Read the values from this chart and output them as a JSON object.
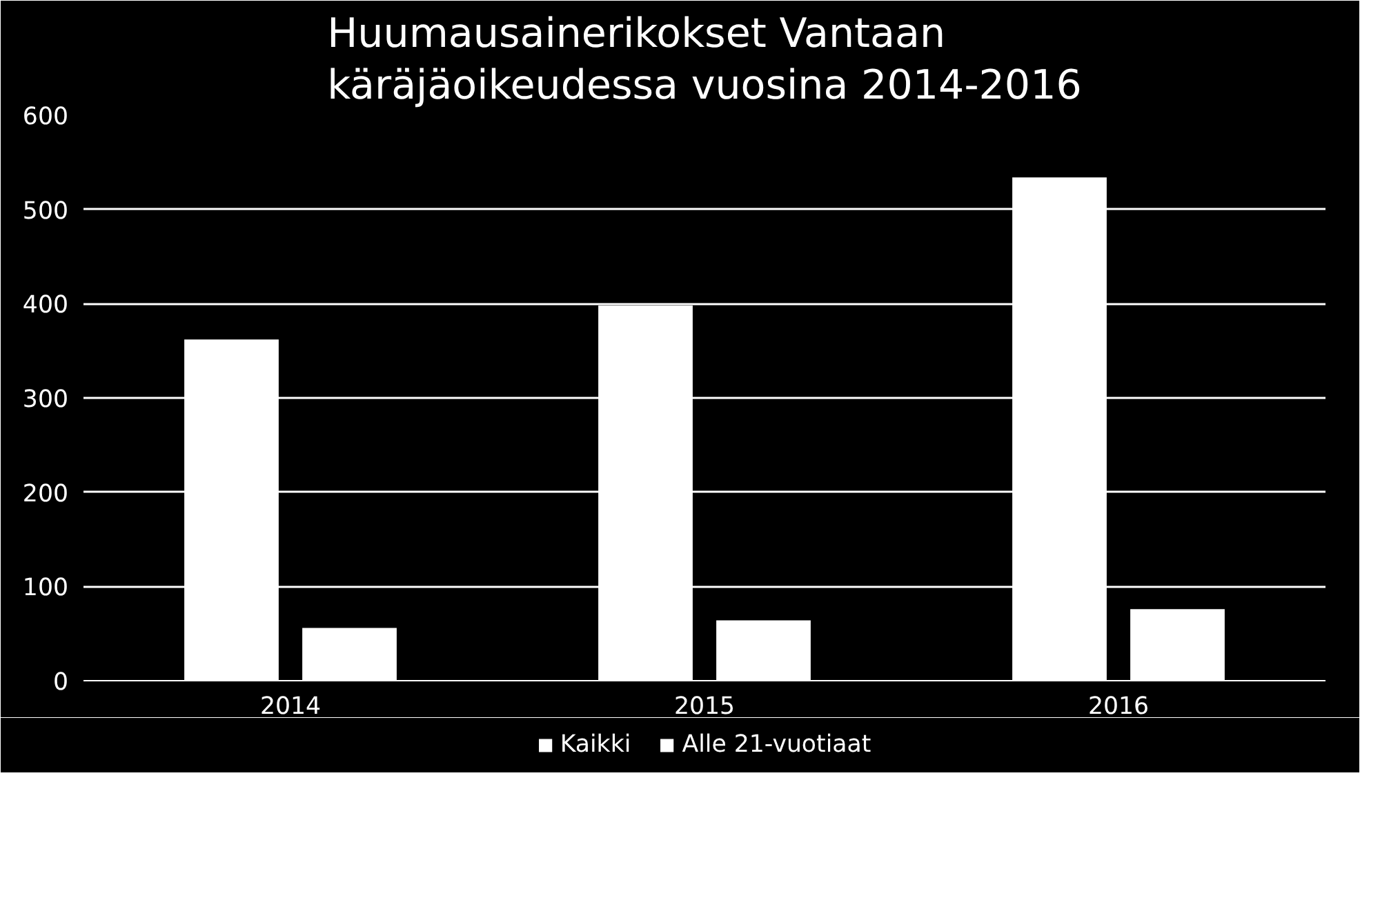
{
  "chart_data": {
    "type": "bar",
    "title": "Huumausainerikokset Vantaan käräjäoikeudessa vuosina 2014-2016",
    "categories": [
      "2014",
      "2015",
      "2016"
    ],
    "series": [
      {
        "name": "Kaikki",
        "color": "#ffffff",
        "values": [
          362,
          398,
          534
        ]
      },
      {
        "name": "Alle 21-vuotiaat",
        "color": "#ffffff",
        "values": [
          56,
          64,
          76
        ]
      }
    ],
    "ylim": [
      0,
      600
    ],
    "yticks": [
      0,
      100,
      200,
      300,
      400,
      500,
      600
    ],
    "grid": "y",
    "legend": "bottom"
  }
}
